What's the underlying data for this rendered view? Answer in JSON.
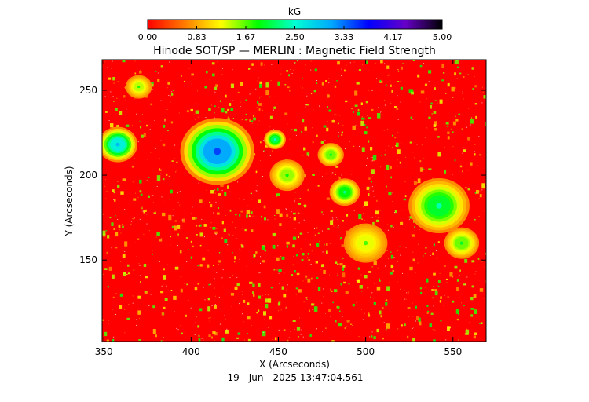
{
  "chart_data": {
    "type": "heatmap",
    "title": "Hinode SOT/SP — MERLIN : Magnetic Field Strength",
    "xlabel": "X (Arcseconds)",
    "ylabel": "Y (Arcseconds)",
    "xlim": [
      349,
      569
    ],
    "ylim": [
      102,
      268
    ],
    "xticks": [
      350,
      400,
      450,
      500,
      550
    ],
    "yticks": [
      150,
      200,
      250
    ],
    "colorbar": {
      "label": "kG",
      "range": [
        0,
        5
      ],
      "ticks": [
        "0.00",
        "0.83",
        "1.67",
        "2.50",
        "3.33",
        "4.17",
        "5.00"
      ],
      "colors": [
        "#ff0000",
        "#ff7a00",
        "#ffff00",
        "#00ff00",
        "#00ffd2",
        "#00a8ff",
        "#0000ff",
        "#6600c8",
        "#000000"
      ]
    },
    "background_value_kG": 0.05,
    "features": [
      {
        "x": 415,
        "y": 214,
        "peak_kG": 3.1,
        "radius": 17
      },
      {
        "x": 358,
        "y": 218,
        "peak_kG": 2.6,
        "radius": 9
      },
      {
        "x": 448,
        "y": 221,
        "peak_kG": 2.1,
        "radius": 5
      },
      {
        "x": 542,
        "y": 182,
        "peak_kG": 2.0,
        "radius": 14
      },
      {
        "x": 488,
        "y": 190,
        "peak_kG": 1.9,
        "radius": 7
      },
      {
        "x": 480,
        "y": 212,
        "peak_kG": 1.6,
        "radius": 6
      },
      {
        "x": 370,
        "y": 252,
        "peak_kG": 1.4,
        "radius": 6
      },
      {
        "x": 455,
        "y": 200,
        "peak_kG": 1.5,
        "radius": 8
      },
      {
        "x": 500,
        "y": 160,
        "peak_kG": 1.3,
        "radius": 10
      },
      {
        "x": 555,
        "y": 160,
        "peak_kG": 1.6,
        "radius": 8
      }
    ]
  },
  "timestamp": "19—Jun—2025 13:47:04.561"
}
